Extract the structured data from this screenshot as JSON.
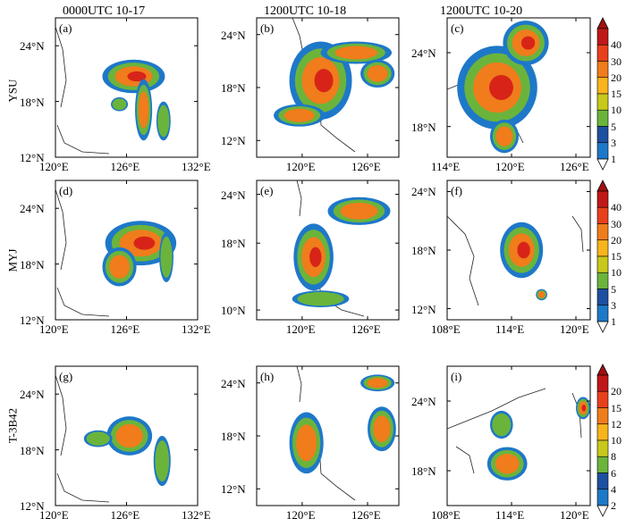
{
  "column_titles": [
    "0000UTC 10-17",
    "1200UTC 10-18",
    "1200UTC 10-20"
  ],
  "row_titles": [
    "YSU",
    "MYJ",
    "T-3B42"
  ],
  "panels": [
    {
      "label": "(a)",
      "x_ticks": [
        "120°E",
        "126°E",
        "132°E"
      ],
      "y_ticks": [
        "24°N",
        "18°N",
        "12°N"
      ]
    },
    {
      "label": "(b)",
      "x_ticks": [
        "120°E",
        "126°E"
      ],
      "y_ticks": [
        "24°N",
        "18°N",
        "12°N"
      ]
    },
    {
      "label": "(c)",
      "x_ticks": [
        "114°E",
        "120°E",
        "126°E"
      ],
      "y_ticks": [
        "24°N",
        "18°N"
      ]
    },
    {
      "label": "(d)",
      "x_ticks": [
        "120°E",
        "126°E",
        "132°E"
      ],
      "y_ticks": [
        "24°N",
        "18°N",
        "12°N"
      ]
    },
    {
      "label": "(e)",
      "x_ticks": [
        "120°E",
        "126°E"
      ],
      "y_ticks": [
        "24°N",
        "18°N",
        "10°N"
      ]
    },
    {
      "label": "(f)",
      "x_ticks": [
        "108°E",
        "114°E",
        "120°E"
      ],
      "y_ticks": [
        "24°N",
        "18°N",
        "12°N"
      ]
    },
    {
      "label": "(g)",
      "x_ticks": [
        "120°E",
        "126°E",
        "132°E"
      ],
      "y_ticks": [
        "24°N",
        "18°N",
        "12°N"
      ]
    },
    {
      "label": "(h)",
      "x_ticks": [
        "120°E",
        "126°E"
      ],
      "y_ticks": [
        "24°N",
        "18°N",
        "12°N"
      ]
    },
    {
      "label": "(i)",
      "x_ticks": [
        "108°E",
        "114°E",
        "120°E"
      ],
      "y_ticks": [
        "24°N",
        "18°N"
      ]
    }
  ],
  "colorbars": [
    {
      "levels": [
        "40",
        "30",
        "20",
        "15",
        "10",
        "5",
        "3",
        "1"
      ],
      "colors": [
        "#c01818",
        "#e8401c",
        "#f07c1c",
        "#f8b41c",
        "#c8c81c",
        "#6ab43c",
        "#1e50a0",
        "#1e78c8"
      ]
    },
    {
      "levels": [
        "40",
        "30",
        "20",
        "15",
        "10",
        "5",
        "3",
        "1"
      ],
      "colors": [
        "#c01818",
        "#e8401c",
        "#f07c1c",
        "#f8b41c",
        "#c8c81c",
        "#6ab43c",
        "#1e50a0",
        "#1e78c8"
      ]
    },
    {
      "levels": [
        "20",
        "15",
        "12",
        "10",
        "8",
        "6",
        "4",
        "2"
      ],
      "colors": [
        "#c01818",
        "#e8401c",
        "#f07c1c",
        "#f8b41c",
        "#c8c81c",
        "#6ab43c",
        "#1e50a0",
        "#1e78c8"
      ]
    }
  ],
  "colors": {
    "blue_edge": "#1e78c8",
    "green": "#6ab43c",
    "orange": "#f07c1c",
    "red": "#d82418",
    "coast": "#222222"
  }
}
